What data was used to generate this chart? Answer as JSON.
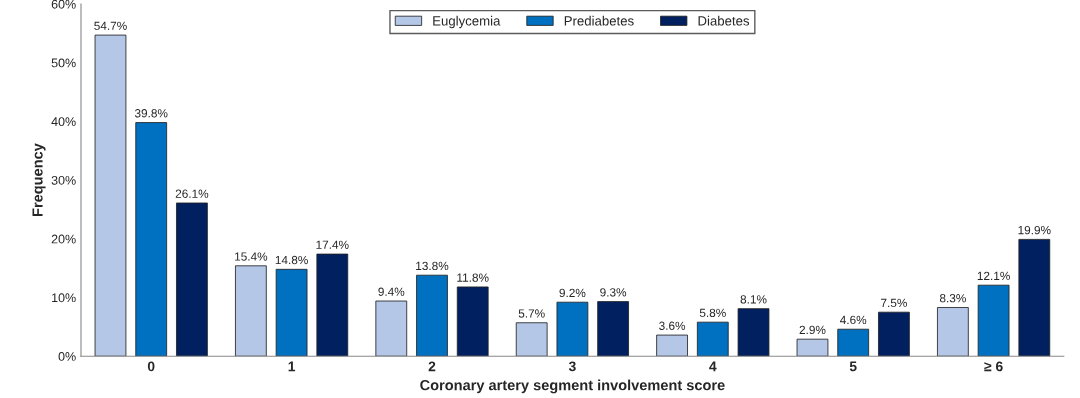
{
  "chart_data": {
    "type": "bar",
    "xlabel": "Coronary artery segment involvement score",
    "ylabel": "Frequency",
    "categories": [
      "0",
      "1",
      "2",
      "3",
      "4",
      "5",
      "≥ 6"
    ],
    "series": [
      {
        "name": "Euglycemia",
        "color": "#b4c7e7",
        "values": [
          54.7,
          15.4,
          9.4,
          5.7,
          3.6,
          2.9,
          8.3
        ],
        "value_labels": [
          "54.7%",
          "15.4%",
          "9.4%",
          "5.7%",
          "3.6%",
          "2.9%",
          "8.3%"
        ]
      },
      {
        "name": "Prediabetes",
        "color": "#0070c0",
        "values": [
          39.8,
          14.8,
          13.8,
          9.2,
          5.8,
          4.6,
          12.1
        ],
        "value_labels": [
          "39.8%",
          "14.8%",
          "13.8%",
          "9.2%",
          "5.8%",
          "4.6%",
          "12.1%"
        ]
      },
      {
        "name": "Diabetes",
        "color": "#002060",
        "values": [
          26.1,
          17.4,
          11.8,
          9.3,
          8.1,
          7.5,
          19.9
        ],
        "value_labels": [
          "26.1%",
          "17.4%",
          "11.8%",
          "9.3%",
          "8.1%",
          "7.5%",
          "19.9%"
        ]
      }
    ],
    "ylim": [
      0,
      60
    ],
    "yticks": [
      {
        "value": 0,
        "label": "0%"
      },
      {
        "value": 10,
        "label": "10%"
      },
      {
        "value": 20,
        "label": "20%"
      },
      {
        "value": 30,
        "label": "30%"
      },
      {
        "value": 40,
        "label": "40%"
      },
      {
        "value": 50,
        "label": "50%"
      },
      {
        "value": 60,
        "label": "60%"
      }
    ],
    "legend": "top",
    "grid": false
  }
}
